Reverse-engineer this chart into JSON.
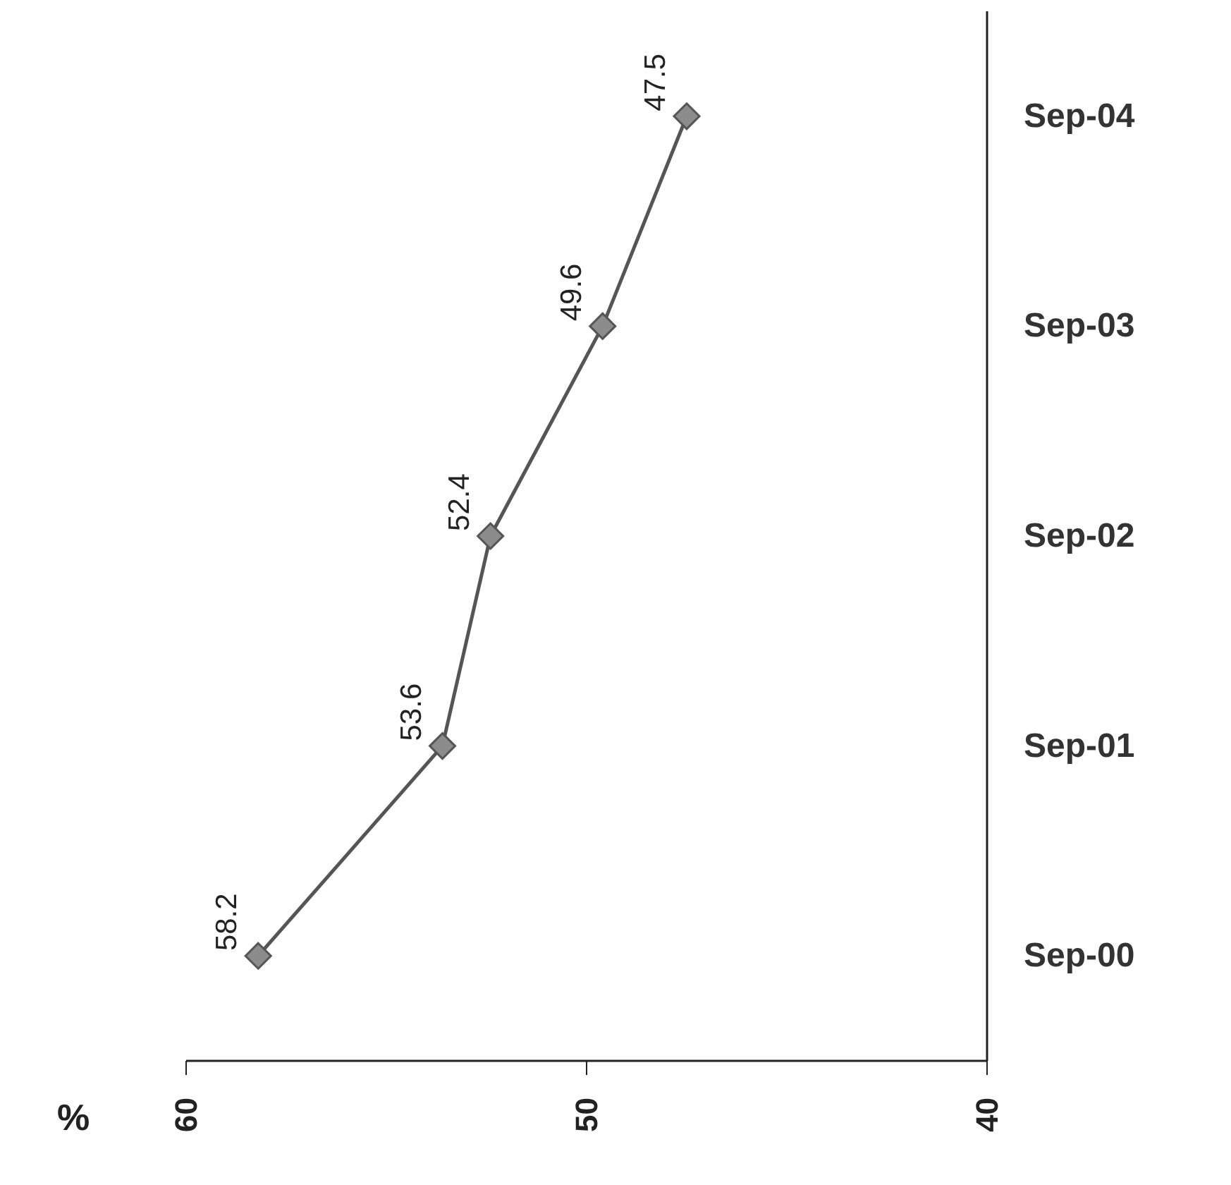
{
  "chart_data": {
    "type": "line",
    "orientation": "horizontal",
    "xlabel": "%",
    "categories": [
      "Sep-04",
      "Sep-03",
      "Sep-02",
      "Sep-01",
      "Sep-00"
    ],
    "series": [
      {
        "color": "#555555",
        "values": [
          47.5,
          49.6,
          52.4,
          53.6,
          58.2
        ]
      }
    ],
    "xlim": [
      60,
      40
    ],
    "xticks": [
      60,
      50,
      40
    ],
    "data_labels": true,
    "marker": "diamond",
    "line_style": "solid"
  }
}
